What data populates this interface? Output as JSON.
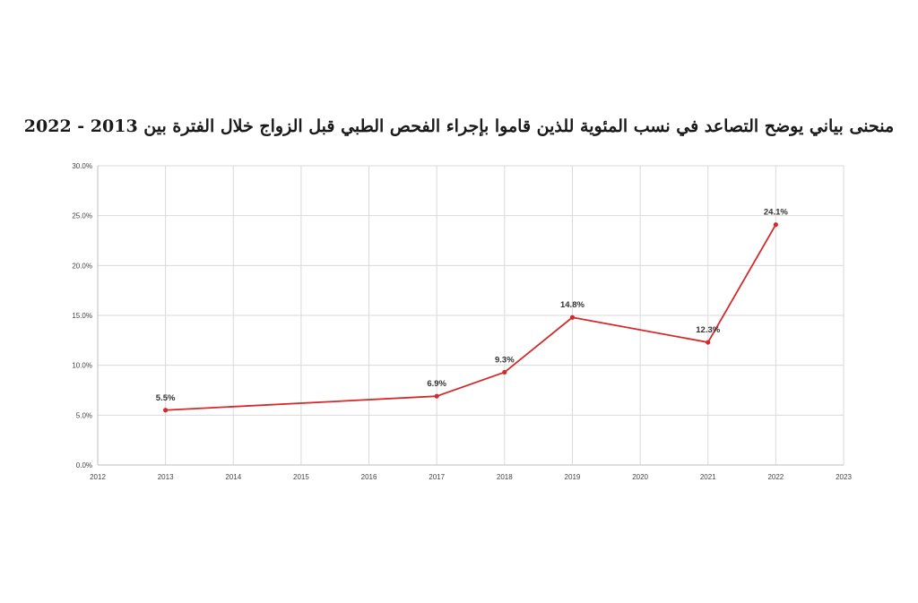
{
  "chart_data": {
    "type": "line",
    "title": "منحنى بياني يوضح التصاعد في نسب المئوية للذين قاموا بإجراء الفحص الطبي قبل الزواج خلال الفترة بين 2013 - 2022",
    "xlabel": "",
    "ylabel": "",
    "xlim": [
      2012,
      2023
    ],
    "ylim": [
      0,
      30
    ],
    "x_ticks": [
      "2012",
      "2013",
      "2014",
      "2015",
      "2016",
      "2017",
      "2018",
      "2019",
      "2020",
      "2021",
      "2022",
      "2023"
    ],
    "y_ticks": [
      "0.0%",
      "5.0%",
      "10.0%",
      "15.0%",
      "20.0%",
      "25.0%",
      "30.0%"
    ],
    "grid": true,
    "legend": "none",
    "series": [
      {
        "color": "#d42a2a",
        "x": [
          2013,
          2017,
          2018,
          2019,
          2021,
          2022
        ],
        "values": [
          5.5,
          6.9,
          9.3,
          14.8,
          12.3,
          24.1
        ],
        "labels": [
          "5.5%",
          "6.9%",
          "9.3%",
          "14.8%",
          "12.3%",
          "24.1%"
        ]
      }
    ]
  },
  "colors": {
    "line": "#d42a2a",
    "grid": "#d9d9d9",
    "axis": "#bfbfbf"
  }
}
